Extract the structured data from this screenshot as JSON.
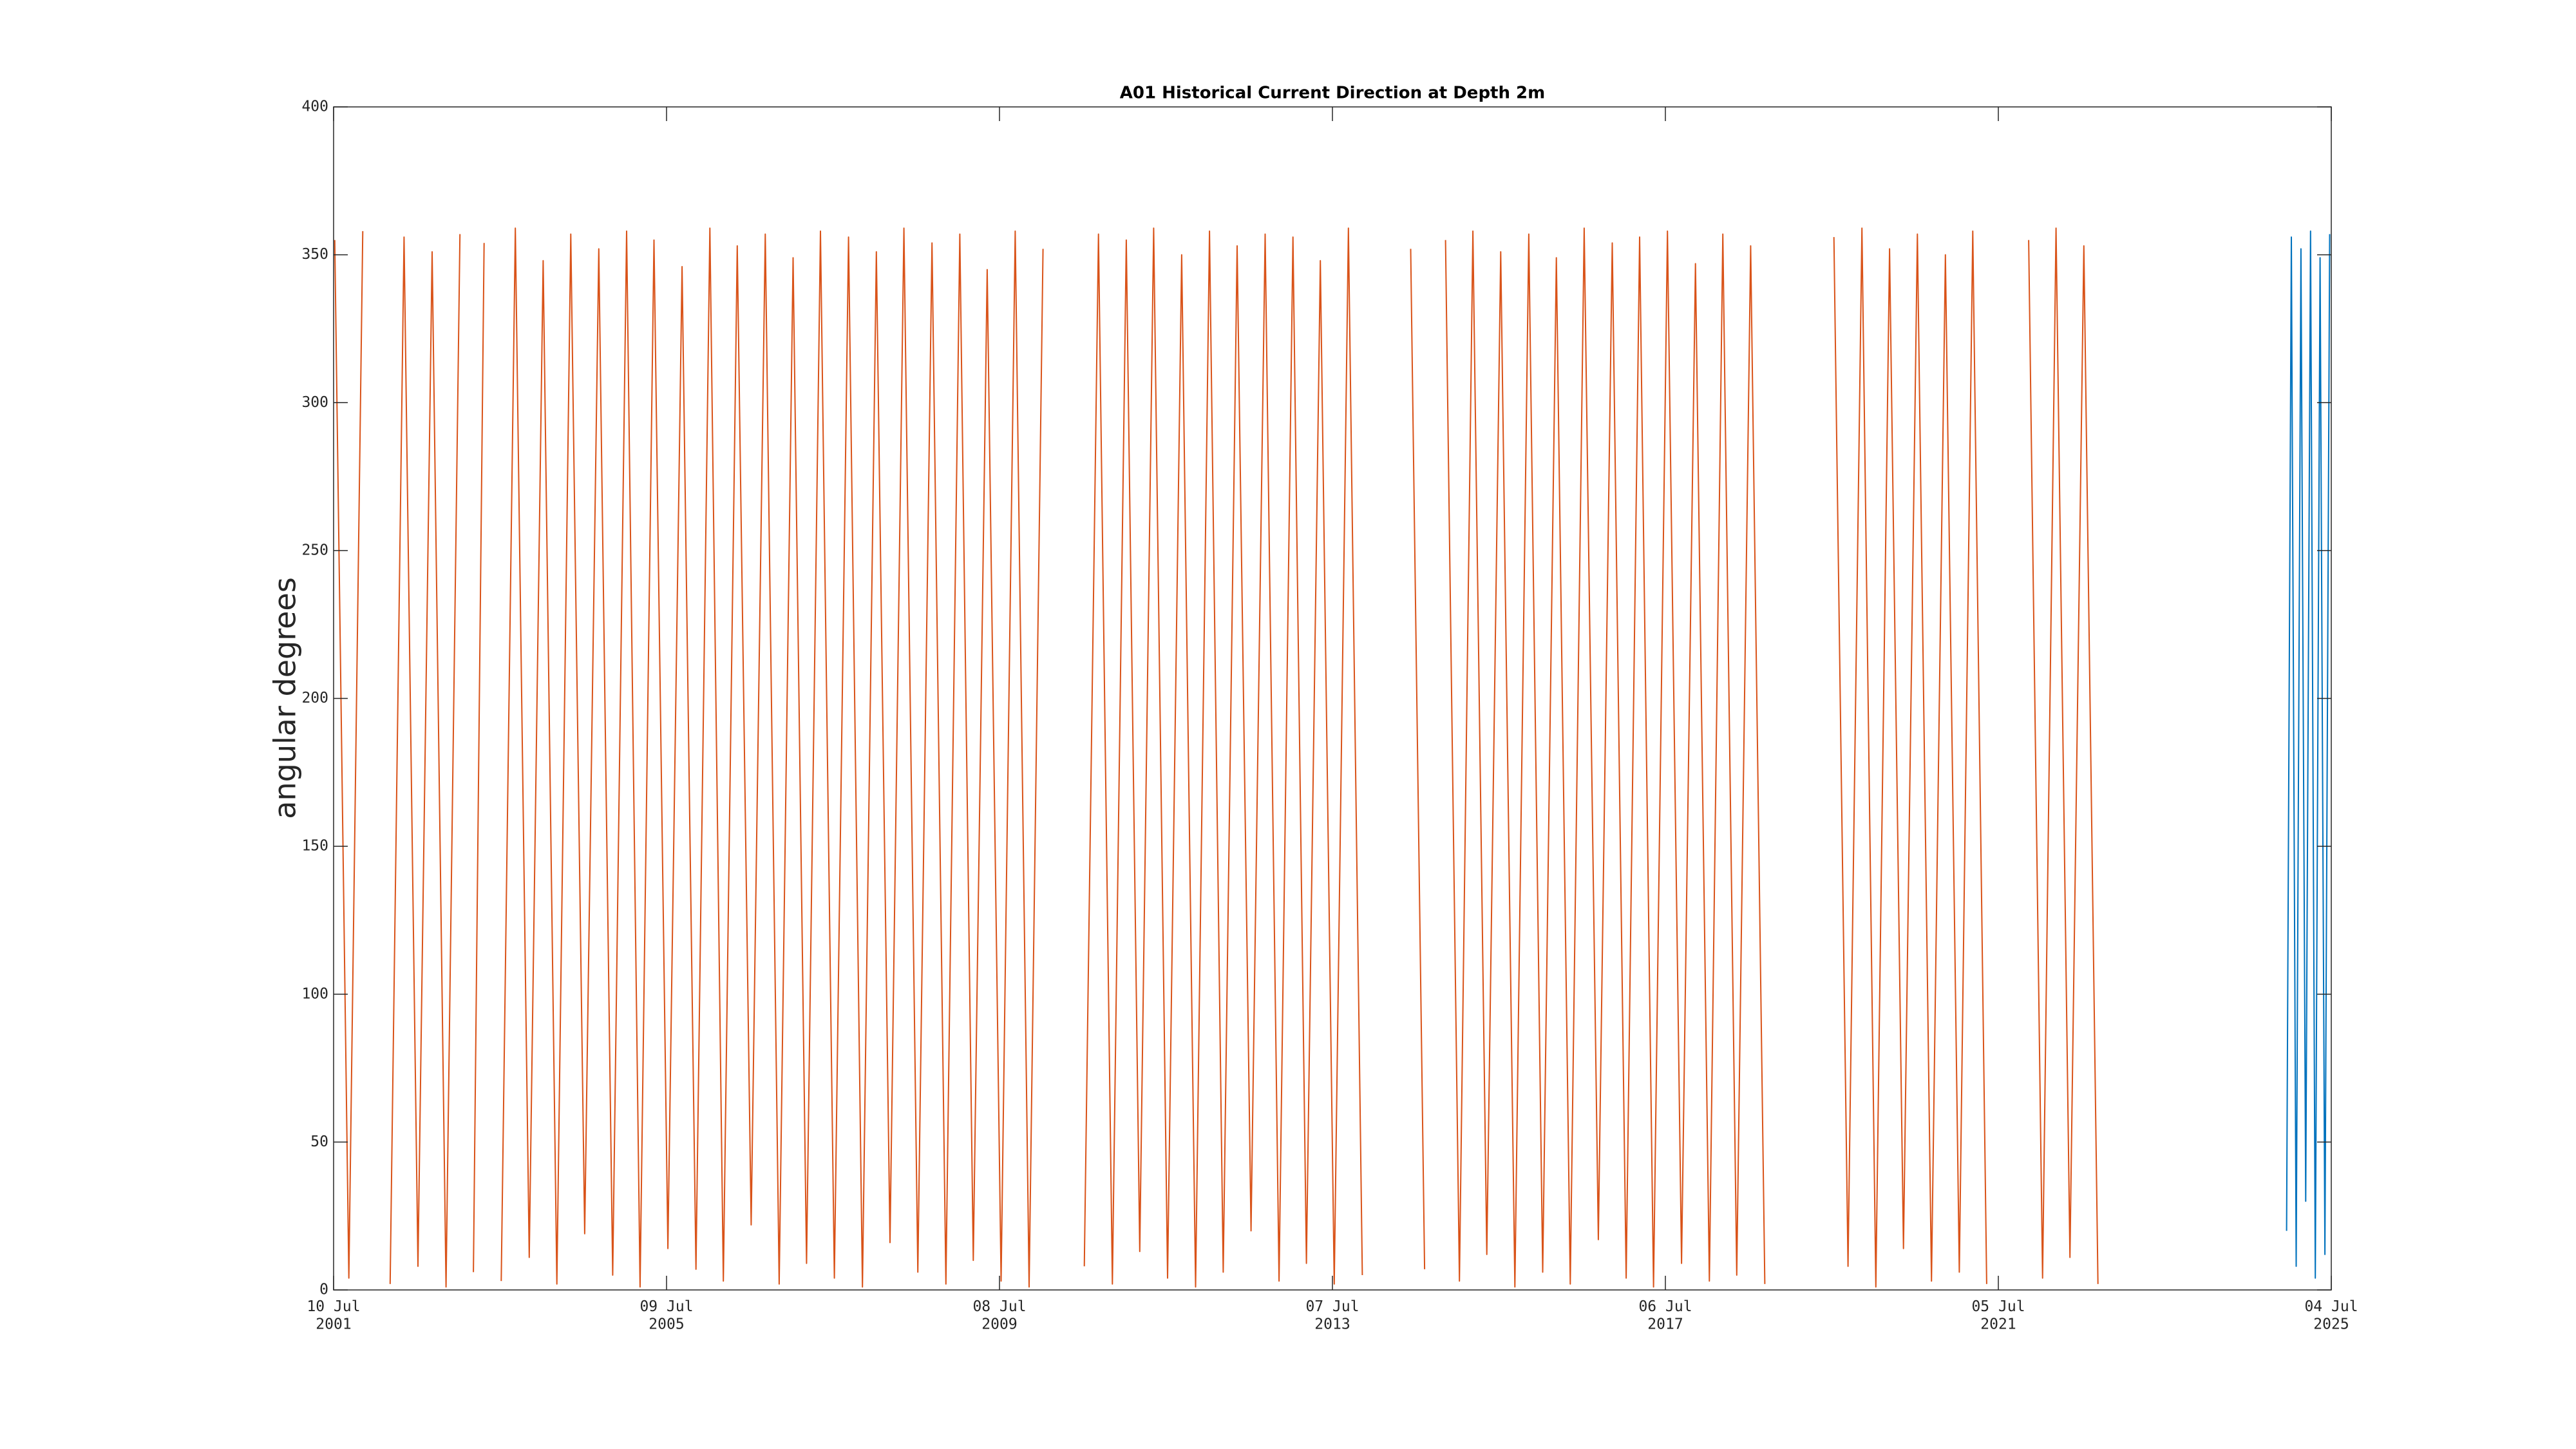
{
  "chart_data": {
    "type": "line",
    "title": "A01 Historical Current Direction at Depth 2m",
    "y_label": "angular degrees",
    "xlim": [
      "2001-07-10",
      "2025-07-04"
    ],
    "ylim": [
      0,
      400
    ],
    "yticks": [
      0,
      50,
      100,
      150,
      200,
      250,
      300,
      350,
      400
    ],
    "xticks": [
      {
        "value": "2001-07-10",
        "label": "10 Jul 2001"
      },
      {
        "value": "2005-07-09",
        "label": "09 Jul 2005"
      },
      {
        "value": "2009-07-08",
        "label": "08 Jul 2009"
      },
      {
        "value": "2013-07-07",
        "label": "07 Jul 2013"
      },
      {
        "value": "2017-07-06",
        "label": "06 Jul 2017"
      },
      {
        "value": "2021-07-05",
        "label": "05 Jul 2021"
      },
      {
        "value": "2025-07-04",
        "label": "04 Jul 2025"
      }
    ],
    "grid": false,
    "series": [
      {
        "color": "#d95319",
        "x": [
          "2001-07-15",
          "2001-09-15",
          "2001-11-15",
          "2002-01-15",
          "2002-03-15",
          "2002-05-15",
          "2002-07-15",
          "2002-09-15",
          "2002-11-15",
          "2003-01-15",
          "2003-02-01",
          "2003-03-15",
          "2003-05-01",
          "2003-06-01",
          "2003-07-15",
          "2003-09-15",
          "2003-11-15",
          "2004-01-15",
          "2004-03-15",
          "2004-05-15",
          "2004-07-15",
          "2004-09-15",
          "2004-11-15",
          "2005-01-15",
          "2005-03-15",
          "2005-05-15",
          "2005-07-15",
          "2005-09-15",
          "2005-11-15",
          "2006-01-15",
          "2006-03-15",
          "2006-05-15",
          "2006-07-15",
          "2006-09-15",
          "2006-11-15",
          "2007-01-15",
          "2007-03-15",
          "2007-05-15",
          "2007-07-15",
          "2007-09-15",
          "2007-11-15",
          "2008-01-15",
          "2008-03-15",
          "2008-05-15",
          "2008-07-15",
          "2008-09-15",
          "2008-11-15",
          "2009-01-15",
          "2009-03-15",
          "2009-05-15",
          "2009-07-15",
          "2009-09-15",
          "2009-11-15",
          "2010-01-15",
          "2010-03-15",
          "2010-07-15",
          "2010-09-15",
          "2010-11-15",
          "2011-01-15",
          "2011-03-15",
          "2011-05-15",
          "2011-07-15",
          "2011-09-15",
          "2011-11-15",
          "2012-01-15",
          "2012-03-15",
          "2012-05-15",
          "2012-07-15",
          "2012-09-15",
          "2012-11-15",
          "2013-01-15",
          "2013-03-15",
          "2013-05-15",
          "2013-07-15",
          "2013-09-15",
          "2013-11-15",
          "2014-03-01",
          "2014-06-15",
          "2014-08-15",
          "2014-10-01",
          "2014-11-15",
          "2015-01-15",
          "2015-03-15",
          "2015-05-15",
          "2015-07-15",
          "2015-09-15",
          "2015-11-15",
          "2016-01-15",
          "2016-03-15",
          "2016-05-15",
          "2016-07-15",
          "2016-09-15",
          "2016-11-15",
          "2017-01-15",
          "2017-03-15",
          "2017-05-15",
          "2017-07-15",
          "2017-09-15",
          "2017-11-15",
          "2018-01-15",
          "2018-03-15",
          "2018-05-15",
          "2018-07-15",
          "2018-09-15",
          "2019-01-15",
          "2019-07-15",
          "2019-09-15",
          "2019-11-15",
          "2020-01-15",
          "2020-03-15",
          "2020-05-15",
          "2020-07-15",
          "2020-09-15",
          "2020-11-15",
          "2021-01-15",
          "2021-03-15",
          "2021-05-15",
          "2021-09-01",
          "2021-11-15",
          "2022-01-15",
          "2022-03-15",
          "2022-05-15",
          "2022-07-15",
          "2022-09-15"
        ],
        "values": [
          355,
          4,
          358,
          null,
          2,
          356,
          8,
          351,
          1,
          357,
          null,
          6,
          354,
          null,
          3,
          359,
          11,
          348,
          2,
          357,
          19,
          352,
          5,
          358,
          1,
          355,
          14,
          346,
          7,
          359,
          3,
          353,
          22,
          357,
          2,
          349,
          9,
          358,
          4,
          356,
          1,
          351,
          16,
          359,
          6,
          354,
          2,
          357,
          10,
          345,
          3,
          358,
          1,
          352,
          null,
          8,
          357,
          2,
          355,
          13,
          359,
          4,
          350,
          1,
          358,
          6,
          353,
          20,
          357,
          3,
          356,
          9,
          348,
          2,
          359,
          5,
          null,
          352,
          7,
          null,
          355,
          3,
          358,
          12,
          351,
          1,
          357,
          6,
          349,
          2,
          359,
          17,
          354,
          4,
          356,
          1,
          358,
          9,
          347,
          3,
          357,
          5,
          353,
          2,
          null,
          356,
          8,
          359,
          1,
          352,
          14,
          357,
          3,
          350,
          6,
          358,
          2,
          null,
          355,
          4,
          359,
          11,
          353,
          2
        ]
      },
      {
        "color": "#0072bd",
        "x": [
          "2024-12-20",
          "2025-01-10",
          "2025-01-31",
          "2025-02-21",
          "2025-03-14",
          "2025-04-04",
          "2025-04-25",
          "2025-05-16",
          "2025-06-06",
          "2025-06-27"
        ],
        "values": [
          20,
          356,
          8,
          352,
          30,
          358,
          4,
          349,
          12,
          357
        ]
      }
    ]
  }
}
